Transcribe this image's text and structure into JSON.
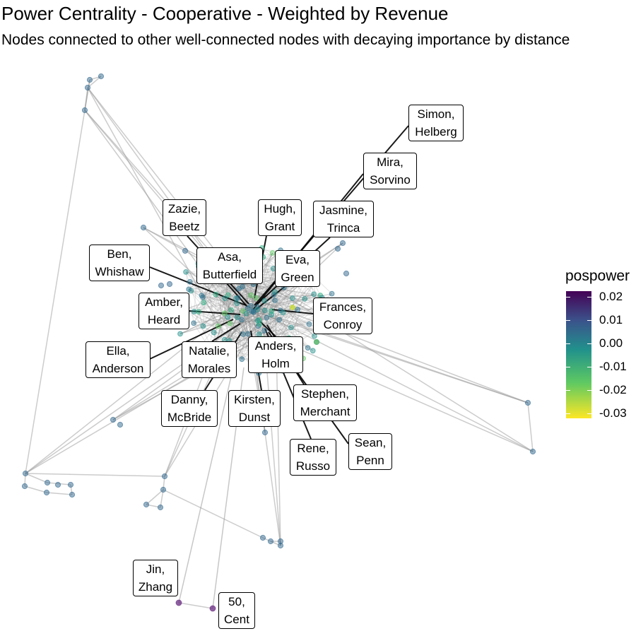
{
  "title": "Power Centrality - Cooperative - Weighted by Revenue",
  "subtitle": "Nodes connected to other well-connected nodes with decaying importance by distance",
  "legend": {
    "title": "pospower",
    "ticks": [
      "0.02",
      "0.01",
      "0.00",
      "-0.01",
      "-0.02",
      "-0.03"
    ],
    "colors": [
      "#440154",
      "#3b528b",
      "#21918c",
      "#5ec962",
      "#fde725"
    ]
  },
  "labels": [
    {
      "line1": "Simon,",
      "line2": "Helberg"
    },
    {
      "line1": "Mira,",
      "line2": "Sorvino"
    },
    {
      "line1": "Zazie,",
      "line2": "Beetz"
    },
    {
      "line1": "Hugh,",
      "line2": "Grant"
    },
    {
      "line1": "Jasmine,",
      "line2": "Trinca"
    },
    {
      "line1": "Ben,",
      "line2": "Whishaw"
    },
    {
      "line1": "Asa,",
      "line2": "Butterfield"
    },
    {
      "line1": "Eva,",
      "line2": "Green"
    },
    {
      "line1": "Amber,",
      "line2": "Heard"
    },
    {
      "line1": "Frances,",
      "line2": "Conroy"
    },
    {
      "line1": "Ella,",
      "line2": "Anderson"
    },
    {
      "line1": "Natalie,",
      "line2": "Morales"
    },
    {
      "line1": "Anders,",
      "line2": "Holm"
    },
    {
      "line1": "Danny,",
      "line2": "McBride"
    },
    {
      "line1": "Kirsten,",
      "line2": "Dunst"
    },
    {
      "line1": "Stephen,",
      "line2": "Merchant"
    },
    {
      "line1": "Sean,",
      "line2": "Penn"
    },
    {
      "line1": "Rene,",
      "line2": "Russo"
    },
    {
      "line1": "Jin,",
      "line2": "Zhang"
    },
    {
      "line1": "50,",
      "line2": "Cent"
    }
  ]
}
